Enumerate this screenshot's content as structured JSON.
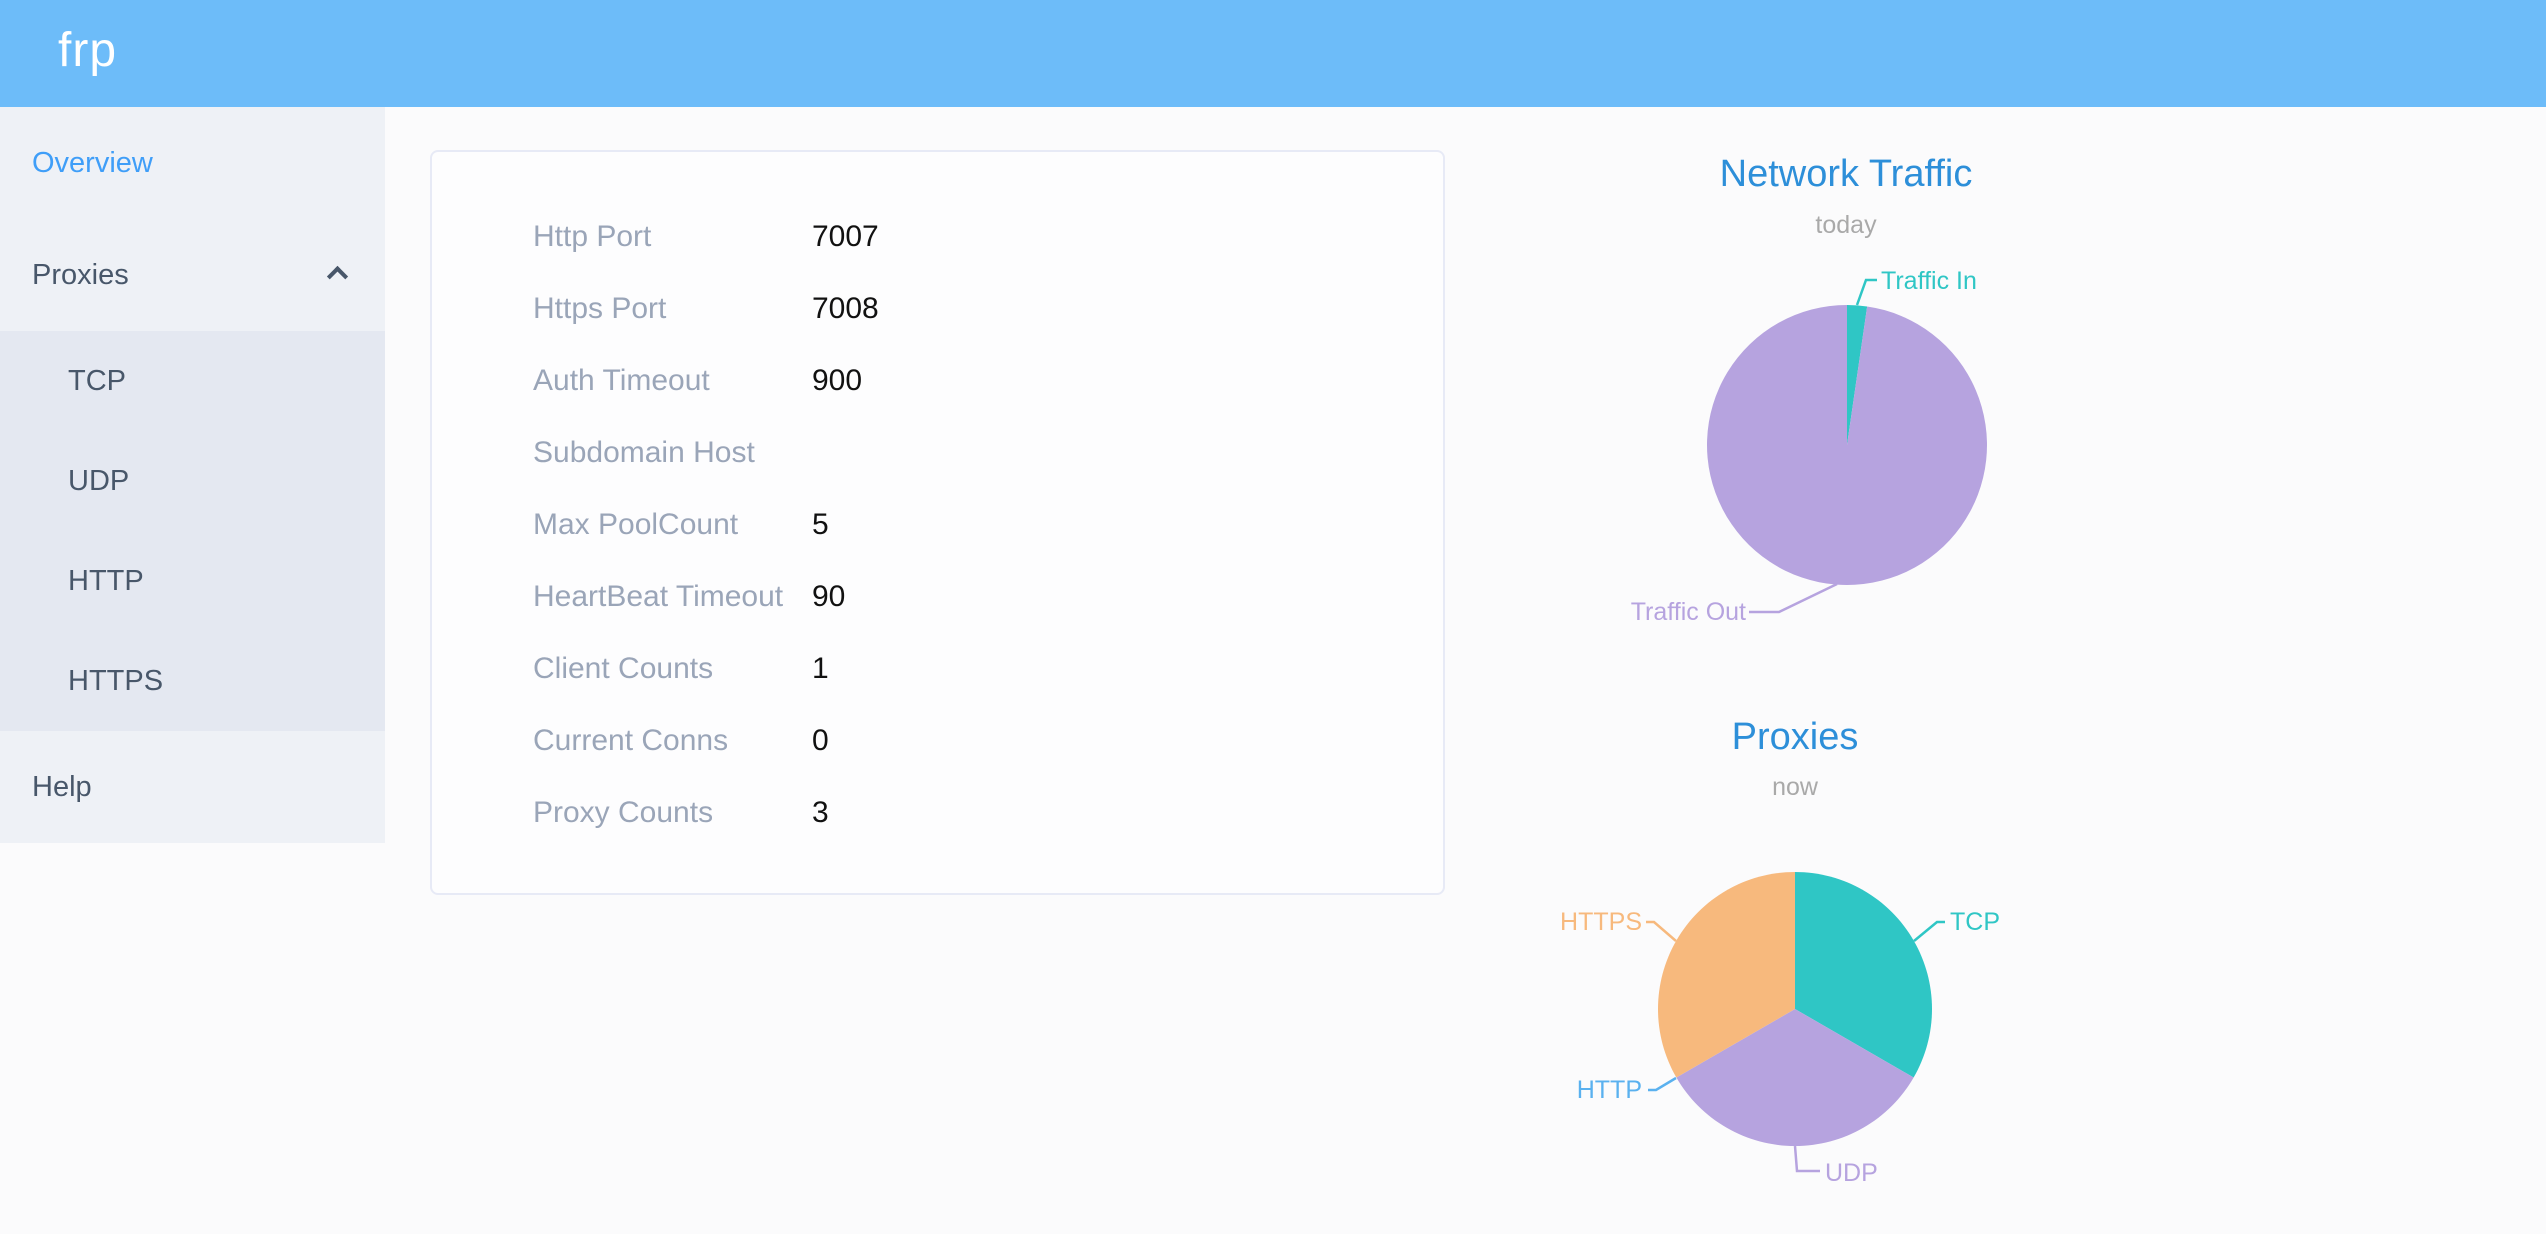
{
  "header": {
    "logo_text": "frp"
  },
  "sidebar": {
    "overview_label": "Overview",
    "proxies_label": "Proxies",
    "proxy_types": [
      "TCP",
      "UDP",
      "HTTP",
      "HTTPS"
    ],
    "help_label": "Help",
    "active_item": "Overview"
  },
  "server_info": {
    "rows": [
      {
        "label": "Http Port",
        "value": "7007"
      },
      {
        "label": "Https Port",
        "value": "7008"
      },
      {
        "label": "Auth Timeout",
        "value": "900"
      },
      {
        "label": "Subdomain Host",
        "value": ""
      },
      {
        "label": "Max PoolCount",
        "value": "5"
      },
      {
        "label": "HeartBeat Timeout",
        "value": "90"
      },
      {
        "label": "Client Counts",
        "value": "1"
      },
      {
        "label": "Current Conns",
        "value": "0"
      },
      {
        "label": "Proxy Counts",
        "value": "3"
      }
    ]
  },
  "chart_data": [
    {
      "type": "pie",
      "title": "Network Traffic",
      "subtitle": "today",
      "legend_position": "callout-labels",
      "start_angle_deg": 0,
      "slices": [
        {
          "name": "Traffic In",
          "value": 2.3,
          "color": "#2fc6c5"
        },
        {
          "name": "Traffic Out",
          "value": 97.7,
          "color": "#b6a3df"
        }
      ]
    },
    {
      "type": "pie",
      "title": "Proxies",
      "subtitle": "now",
      "legend_position": "callout-labels",
      "start_angle_deg": 0,
      "slices": [
        {
          "name": "TCP",
          "value": 1,
          "color": "#2fc6c5"
        },
        {
          "name": "UDP",
          "value": 1,
          "color": "#b6a3df"
        },
        {
          "name": "HTTP",
          "value": 0,
          "color": "#5ab1ef"
        },
        {
          "name": "HTTPS",
          "value": 1,
          "color": "#f7b97d"
        }
      ]
    }
  ],
  "colors": {
    "header_blue": "#6dbcf9",
    "sidebar_bg": "#eef1f6",
    "submenu_bg": "#e4e8f1",
    "sidebar_text": "#48576a",
    "active_blue": "#3f9ef8",
    "chart_title_blue": "#2d8fd9",
    "card_label_gray": "#9aa5b8"
  }
}
